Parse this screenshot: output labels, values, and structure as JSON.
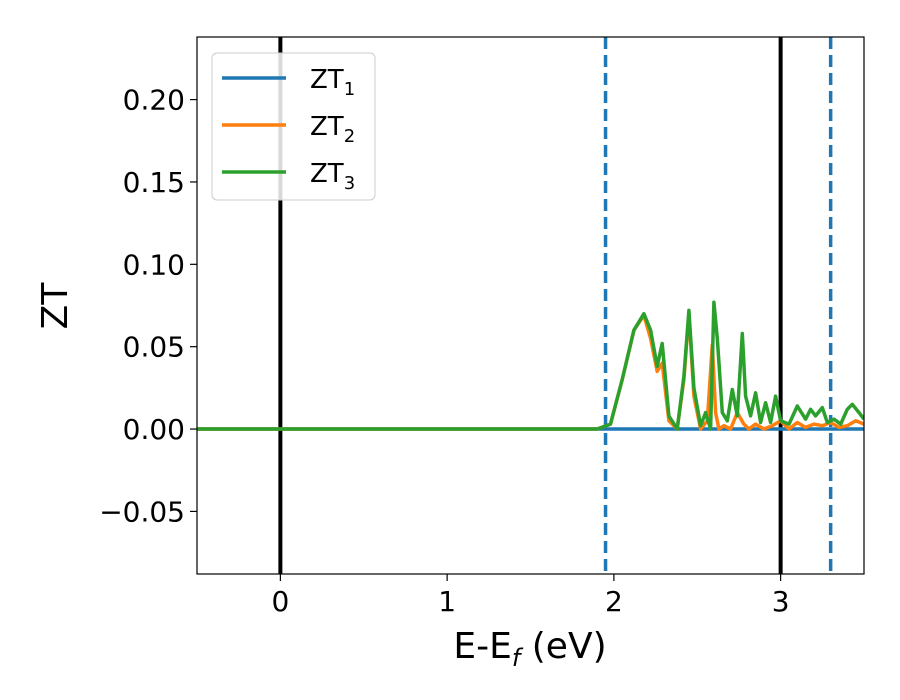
{
  "chart_data": {
    "type": "line",
    "xlabel_main": "E-E",
    "xlabel_sub": "f",
    "xlabel_unit": " (eV)",
    "ylabel": "ZT",
    "xlim": [
      -0.5,
      3.5
    ],
    "ylim": [
      -0.088,
      0.238
    ],
    "xticks": [
      0,
      1,
      2,
      3
    ],
    "xtick_labels": [
      "0",
      "1",
      "2",
      "3"
    ],
    "yticks": [
      -0.05,
      0.0,
      0.05,
      0.1,
      0.15,
      0.2
    ],
    "ytick_labels": [
      "−0.05",
      "0.00",
      "0.05",
      "0.10",
      "0.15",
      "0.20"
    ],
    "grid": false,
    "legend_position": "top-left",
    "vertical_lines": [
      {
        "x": 0.0,
        "style": "solid",
        "color": "#000000"
      },
      {
        "x": 3.0,
        "style": "solid",
        "color": "#000000"
      },
      {
        "x": 1.95,
        "style": "dashed",
        "color": "#1f77b4"
      },
      {
        "x": 3.3,
        "style": "dashed",
        "color": "#1f77b4"
      }
    ],
    "series": [
      {
        "name_main": "ZT",
        "name_sub": "1",
        "color": "#1f77b4",
        "x": [
          -0.5,
          3.5
        ],
        "y": [
          0.0,
          0.0
        ]
      },
      {
        "name_main": "ZT",
        "name_sub": "2",
        "color": "#ff7f0e",
        "x": [
          -0.5,
          1.9,
          1.98,
          2.05,
          2.12,
          2.18,
          2.22,
          2.26,
          2.29,
          2.33,
          2.38,
          2.42,
          2.45,
          2.48,
          2.52,
          2.56,
          2.59,
          2.61,
          2.63,
          2.66,
          2.7,
          2.74,
          2.78,
          2.81,
          2.85,
          2.9,
          2.95,
          3.0,
          3.05,
          3.1,
          3.15,
          3.2,
          3.25,
          3.3,
          3.35,
          3.4,
          3.45,
          3.5
        ],
        "y": [
          0.0,
          0.0,
          0.003,
          0.03,
          0.06,
          0.069,
          0.055,
          0.035,
          0.04,
          0.005,
          0.0,
          0.03,
          0.07,
          0.02,
          0.0,
          0.005,
          0.051,
          0.01,
          0.0,
          0.002,
          0.0,
          0.01,
          0.003,
          0.0,
          0.003,
          0.0,
          0.002,
          0.005,
          0.0,
          0.004,
          0.001,
          0.003,
          0.002,
          0.004,
          0.001,
          0.002,
          0.005,
          0.003
        ]
      },
      {
        "name_main": "ZT",
        "name_sub": "3",
        "color": "#2ca02c",
        "x": [
          -0.5,
          1.9,
          1.98,
          2.05,
          2.12,
          2.18,
          2.22,
          2.26,
          2.29,
          2.33,
          2.38,
          2.42,
          2.45,
          2.48,
          2.52,
          2.55,
          2.58,
          2.6,
          2.62,
          2.65,
          2.68,
          2.71,
          2.74,
          2.77,
          2.79,
          2.82,
          2.85,
          2.88,
          2.91,
          2.94,
          2.97,
          3.0,
          3.05,
          3.1,
          3.15,
          3.18,
          3.21,
          3.25,
          3.28,
          3.32,
          3.36,
          3.4,
          3.43,
          3.47,
          3.5
        ],
        "y": [
          0.0,
          0.0,
          0.003,
          0.03,
          0.06,
          0.07,
          0.06,
          0.038,
          0.052,
          0.008,
          0.0,
          0.032,
          0.072,
          0.025,
          0.002,
          0.01,
          0.0,
          0.077,
          0.055,
          0.01,
          0.005,
          0.024,
          0.008,
          0.058,
          0.02,
          0.008,
          0.022,
          0.004,
          0.016,
          0.004,
          0.02,
          0.005,
          0.003,
          0.014,
          0.006,
          0.012,
          0.008,
          0.013,
          0.004,
          0.006,
          0.003,
          0.012,
          0.015,
          0.01,
          0.006
        ]
      }
    ]
  }
}
